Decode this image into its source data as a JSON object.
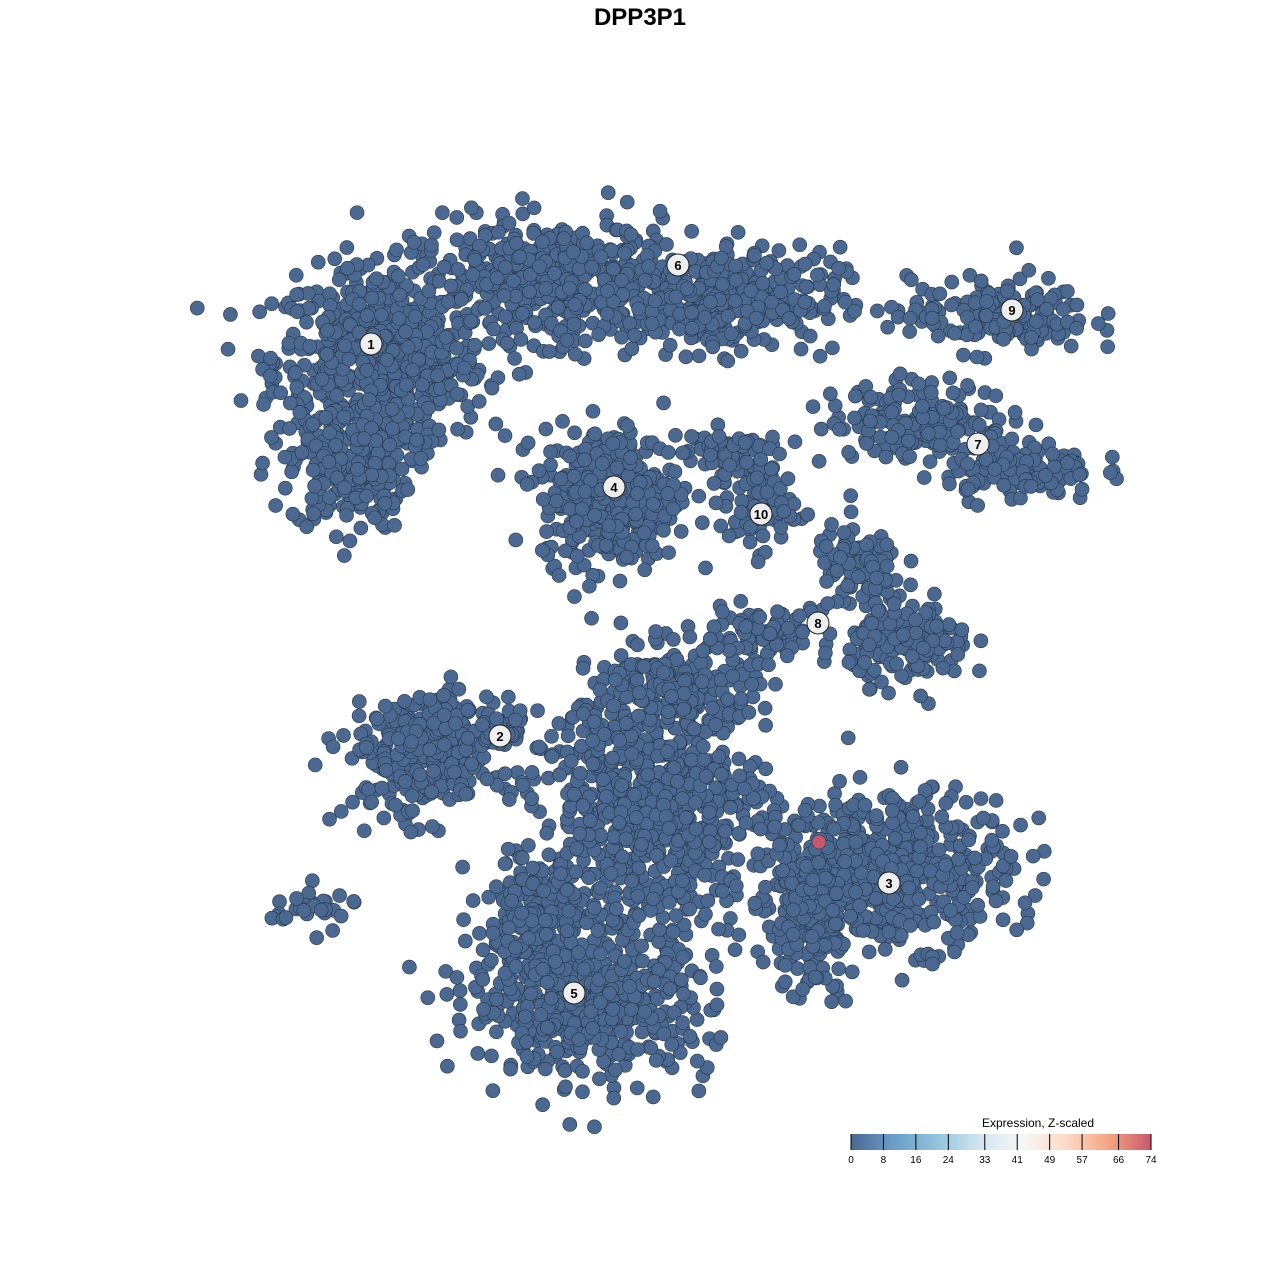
{
  "chart_data": {
    "type": "scatter",
    "title": "DPP3P1",
    "xlabel": "",
    "ylabel": "",
    "xlim": [
      -50,
      50
    ],
    "ylim": [
      -50,
      50
    ],
    "grid": false,
    "axes_visible": false,
    "point_color_low": "#4a6890",
    "point_color_high": "#c8596a",
    "point_stroke": "#27384c",
    "clusters": [
      {
        "label": "1",
        "label_pos": [
          -26.9,
          29.6
        ],
        "blobs": [
          {
            "center": [
              -26,
              28
            ],
            "spread": [
              7,
              6
            ],
            "n": 650
          },
          {
            "center": [
              -29,
              17
            ],
            "spread": [
              4,
              4
            ],
            "n": 200
          }
        ]
      },
      {
        "label": "6",
        "label_pos": [
          3.8,
          37.5
        ],
        "blobs": [
          {
            "center": [
              -9,
              36
            ],
            "spread": [
              9,
              4
            ],
            "n": 450
          },
          {
            "center": [
              8,
              34
            ],
            "spread": [
              8,
              3.5
            ],
            "n": 350
          }
        ]
      },
      {
        "label": "4",
        "label_pos": [
          -2.6,
          15.3
        ],
        "blobs": [
          {
            "center": [
              -3,
              14.5
            ],
            "spread": [
              4.5,
              4.5
            ],
            "n": 420
          }
        ]
      },
      {
        "label": "10",
        "label_pos": [
          12.1,
          12.6
        ],
        "blobs": [
          {
            "center": [
              11.5,
              13.5
            ],
            "spread": [
              2.5,
              3
            ],
            "n": 80
          },
          {
            "center": [
              8,
              19
            ],
            "spread": [
              4,
              1.5
            ],
            "n": 60
          }
        ]
      },
      {
        "label": "9",
        "label_pos": [
          37.2,
          33
        ],
        "blobs": [
          {
            "center": [
              36,
              32.5
            ],
            "spread": [
              6,
              2.5
            ],
            "n": 170
          }
        ]
      },
      {
        "label": "7",
        "label_pos": [
          33.8,
          19.6
        ],
        "blobs": [
          {
            "center": [
              28,
              22
            ],
            "spread": [
              6,
              2.5
            ],
            "n": 180
          },
          {
            "center": [
              38,
              17
            ],
            "spread": [
              5,
              2
            ],
            "n": 120
          }
        ]
      },
      {
        "label": "8",
        "label_pos": [
          17.8,
          1.7
        ],
        "blobs": [
          {
            "center": [
              27,
              -0.5
            ],
            "spread": [
              4,
              2.5
            ],
            "n": 160
          },
          {
            "center": [
              22,
              7
            ],
            "spread": [
              3,
              3
            ],
            "n": 110
          },
          {
            "center": [
              12,
              1
            ],
            "spread": [
              5,
              1.5
            ],
            "n": 80
          }
        ]
      },
      {
        "label": "2",
        "label_pos": [
          -14,
          -9.6
        ],
        "blobs": [
          {
            "center": [
              -22,
              -12
            ],
            "spread": [
              5,
              4
            ],
            "n": 250
          },
          {
            "center": [
              -17,
              -9
            ],
            "spread": [
              5,
              2
            ],
            "n": 100
          },
          {
            "center": [
              -33,
              -27
            ],
            "spread": [
              3,
              1.5
            ],
            "n": 30
          }
        ]
      },
      {
        "label": "3",
        "label_pos": [
          24.9,
          -24.3
        ],
        "blobs": [
          {
            "center": [
              25,
              -23
            ],
            "spread": [
              8,
              5
            ],
            "n": 500
          },
          {
            "center": [
              17,
              -28
            ],
            "spread": [
              3,
              5
            ],
            "n": 150
          }
        ]
      },
      {
        "label": "5",
        "label_pos": [
          -6.6,
          -35.3
        ],
        "blobs": [
          {
            "center": [
              -5,
              -36
            ],
            "spread": [
              8,
              5
            ],
            "n": 550
          },
          {
            "center": [
              -11,
              -28
            ],
            "spread": [
              3,
              4
            ],
            "n": 150
          }
        ]
      },
      {
        "label": "",
        "label_pos": null,
        "blobs": [
          {
            "center": [
              1,
              -17
            ],
            "spread": [
              8,
              8
            ],
            "n": 750
          },
          {
            "center": [
              4,
              -5
            ],
            "spread": [
              5,
              3
            ],
            "n": 180
          }
        ]
      }
    ],
    "highlight_points": [
      {
        "x": 17.9,
        "y": -20.2,
        "value": 74
      }
    ],
    "default_value": 0,
    "legend": {
      "title": "Expression, Z-scaled",
      "placement": "bottom-right",
      "ticks": [
        0,
        8,
        16,
        24,
        33,
        41,
        49,
        57,
        66,
        74
      ],
      "colors": [
        "#4a6890",
        "#6a9ec8",
        "#92c4dd",
        "#d1e5f0",
        "#f7f7f7",
        "#fddbc7",
        "#f4a582",
        "#c8596a"
      ]
    }
  }
}
